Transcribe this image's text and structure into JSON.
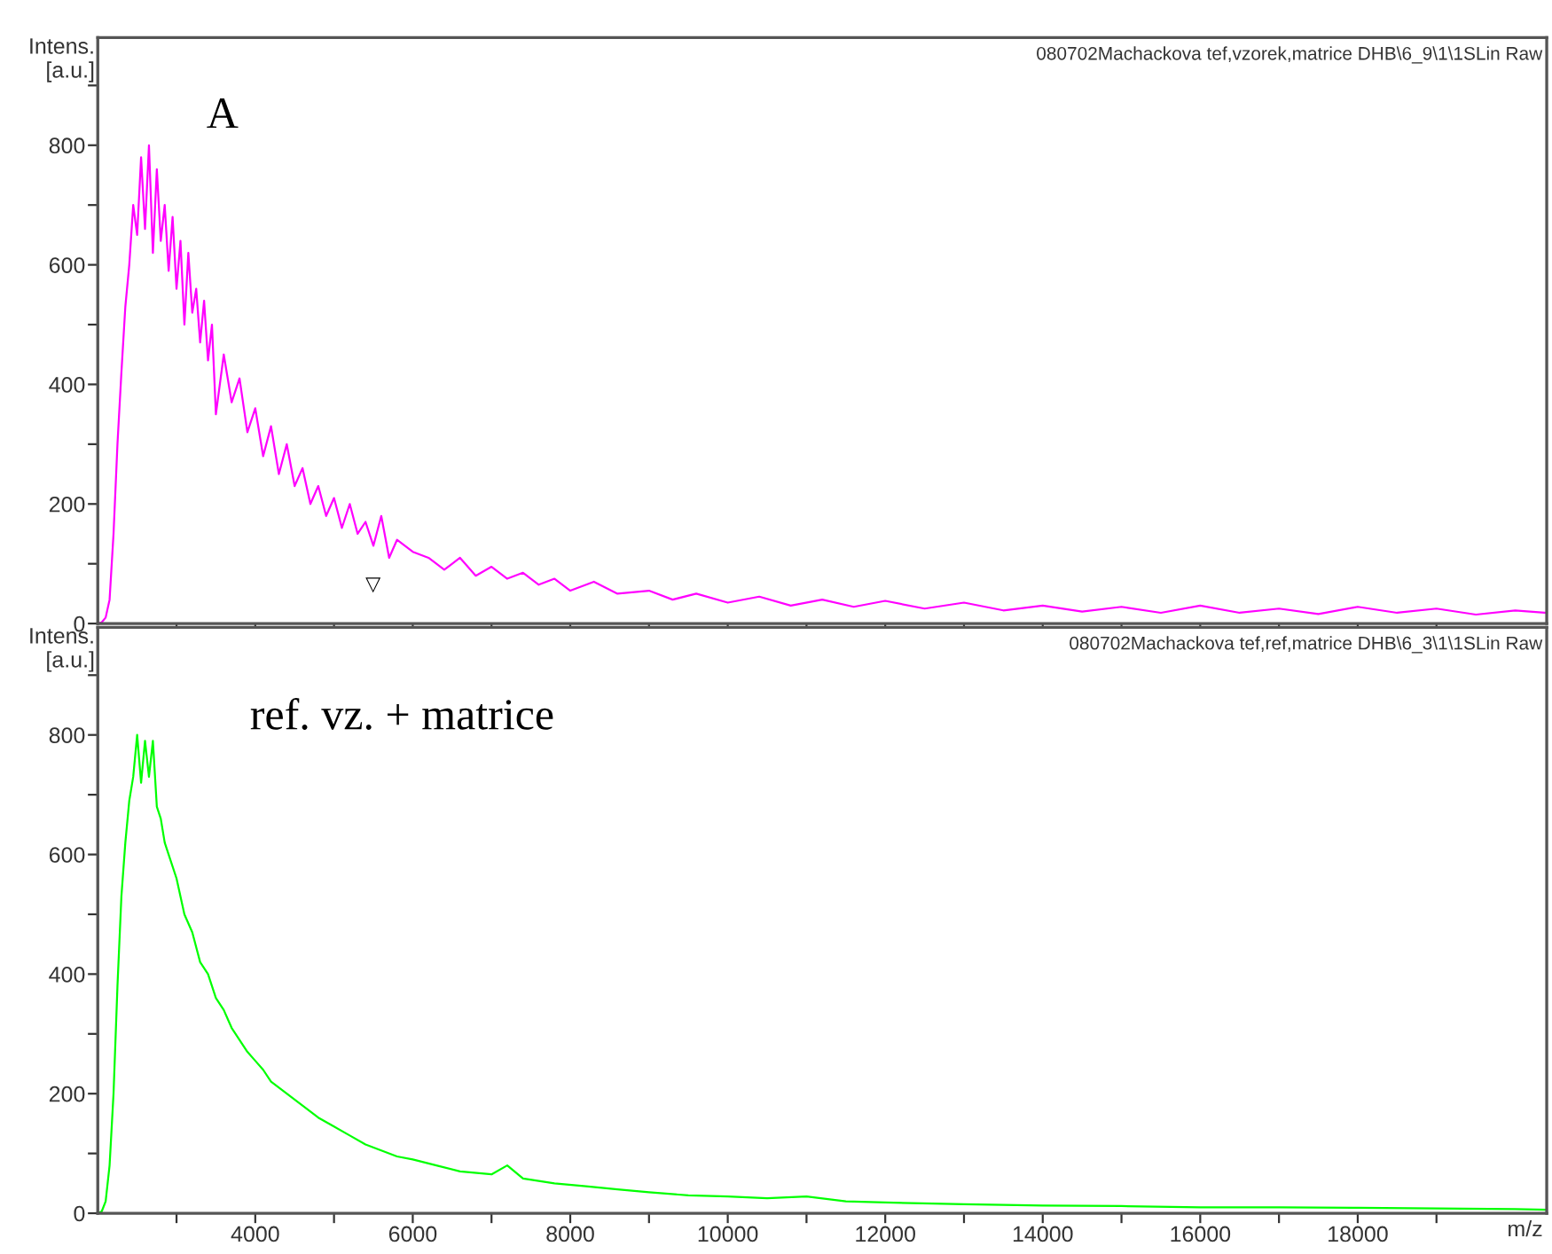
{
  "chart_data": [
    {
      "type": "line",
      "ylabel": "Intens.\n[a.u.]",
      "annotations": [
        "A",
        "080702Machackova tef,vzorek,matrice DHB\\6_9\\1\\1SLin Raw",
        "▽"
      ],
      "x": [
        2000,
        2050,
        2100,
        2150,
        2200,
        2250,
        2300,
        2350,
        2400,
        2450,
        2500,
        2550,
        2600,
        2650,
        2700,
        2750,
        2800,
        2850,
        2900,
        2950,
        3000,
        3050,
        3100,
        3150,
        3200,
        3250,
        3300,
        3350,
        3400,
        3450,
        3500,
        3600,
        3700,
        3800,
        3900,
        4000,
        4100,
        4200,
        4300,
        4400,
        4500,
        4600,
        4700,
        4800,
        4900,
        5000,
        5100,
        5200,
        5300,
        5400,
        5500,
        5600,
        5700,
        5800,
        6000,
        6200,
        6400,
        6600,
        6800,
        7000,
        7200,
        7400,
        7600,
        7800,
        8000,
        8300,
        8600,
        9000,
        9300,
        9600,
        10000,
        10400,
        10800,
        11200,
        11600,
        12000,
        12500,
        13000,
        13500,
        14000,
        14500,
        15000,
        15500,
        16000,
        16500,
        17000,
        17500,
        18000,
        18500,
        19000,
        19500,
        20000,
        20400
      ],
      "series": [
        {
          "color": "#ff00ff",
          "values": [
            0,
            2,
            10,
            40,
            150,
            300,
            420,
            530,
            600,
            700,
            650,
            780,
            660,
            800,
            620,
            760,
            640,
            700,
            590,
            680,
            560,
            640,
            500,
            620,
            520,
            560,
            470,
            540,
            440,
            500,
            350,
            450,
            370,
            410,
            320,
            360,
            280,
            330,
            250,
            300,
            230,
            260,
            200,
            230,
            180,
            210,
            160,
            200,
            150,
            170,
            130,
            180,
            110,
            140,
            120,
            110,
            90,
            110,
            80,
            95,
            75,
            85,
            65,
            75,
            55,
            70,
            50,
            55,
            40,
            50,
            35,
            45,
            30,
            40,
            28,
            38,
            25,
            35,
            22,
            30,
            20,
            28,
            18,
            30,
            18,
            25,
            16,
            28,
            18,
            25,
            15,
            22,
            18
          ]
        }
      ],
      "xlim": [
        2000,
        20400
      ],
      "ylim": [
        0,
        980
      ],
      "xticks": [
        {
          "value": 3000,
          "label": null
        },
        {
          "value": 4000,
          "label": null
        },
        {
          "value": 5000,
          "label": null
        },
        {
          "value": 6000,
          "label": null
        },
        {
          "value": 7000,
          "label": null
        },
        {
          "value": 8000,
          "label": null
        },
        {
          "value": 9000,
          "label": null
        },
        {
          "value": 10000,
          "label": null
        },
        {
          "value": 11000,
          "label": null
        },
        {
          "value": 12000,
          "label": null
        },
        {
          "value": 13000,
          "label": null
        },
        {
          "value": 14000,
          "label": null
        },
        {
          "value": 15000,
          "label": null
        },
        {
          "value": 16000,
          "label": null
        },
        {
          "value": 17000,
          "label": null
        },
        {
          "value": 18000,
          "label": null
        },
        {
          "value": 19000,
          "label": null
        }
      ],
      "yticks": [
        0,
        {
          "value": 100,
          "label": null
        },
        200,
        {
          "value": 300,
          "label": null
        },
        400,
        {
          "value": 500,
          "label": null
        },
        600,
        {
          "value": 700,
          "label": null
        },
        800,
        {
          "value": 900,
          "label": null
        }
      ],
      "tick_labels": "y"
    },
    {
      "type": "line",
      "ylabel": "Intens.\n[a.u.]",
      "xlabel": "m/z",
      "annotations": [
        "ref. vz. + matrice",
        "080702Machackova tef,ref,matrice DHB\\6_3\\1\\1SLin Raw"
      ],
      "x": [
        2000,
        2050,
        2100,
        2150,
        2200,
        2250,
        2300,
        2350,
        2400,
        2450,
        2500,
        2550,
        2600,
        2650,
        2700,
        2750,
        2800,
        2850,
        2900,
        3000,
        3100,
        3200,
        3300,
        3400,
        3500,
        3600,
        3700,
        3800,
        3900,
        4000,
        4100,
        4200,
        4400,
        4600,
        4800,
        5000,
        5200,
        5400,
        5600,
        5800,
        6000,
        6300,
        6600,
        7000,
        7200,
        7400,
        7800,
        8200,
        8600,
        9000,
        9500,
        10000,
        10500,
        11000,
        11500,
        12000,
        13000,
        14000,
        15000,
        16000,
        17000,
        18000,
        19000,
        20000,
        20400
      ],
      "series": [
        {
          "color": "#00ff00",
          "values": [
            0,
            3,
            20,
            80,
            200,
            380,
            530,
            620,
            690,
            730,
            800,
            720,
            790,
            730,
            790,
            680,
            660,
            620,
            600,
            560,
            500,
            470,
            420,
            400,
            360,
            340,
            310,
            290,
            270,
            255,
            240,
            220,
            200,
            180,
            160,
            145,
            130,
            115,
            105,
            95,
            90,
            80,
            70,
            65,
            80,
            58,
            50,
            45,
            40,
            35,
            30,
            28,
            25,
            28,
            20,
            18,
            15,
            13,
            12,
            10,
            10,
            9,
            8,
            7,
            6
          ]
        }
      ],
      "xlim": [
        2000,
        20400
      ],
      "ylim": [
        0,
        980
      ],
      "xticks": [
        {
          "value": 3000,
          "label": null
        },
        4000,
        {
          "value": 5000,
          "label": null
        },
        6000,
        {
          "value": 7000,
          "label": null
        },
        8000,
        {
          "value": 9000,
          "label": null
        },
        10000,
        {
          "value": 11000,
          "label": null
        },
        12000,
        {
          "value": 13000,
          "label": null
        },
        14000,
        {
          "value": 15000,
          "label": null
        },
        16000,
        {
          "value": 17000,
          "label": null
        },
        18000,
        {
          "value": 19000,
          "label": null
        }
      ],
      "yticks": [
        0,
        {
          "value": 100,
          "label": null
        },
        200,
        {
          "value": 300,
          "label": null
        },
        400,
        {
          "value": 500,
          "label": null
        },
        600,
        {
          "value": 700,
          "label": null
        },
        800,
        {
          "value": 900,
          "label": null
        }
      ]
    }
  ]
}
